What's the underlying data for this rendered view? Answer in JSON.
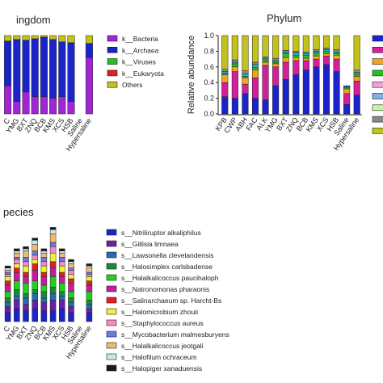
{
  "chart_data": [
    {
      "id": "kingdom",
      "type": "bar",
      "stacked": true,
      "title": "ingdom",
      "ylabel": "",
      "ylim": [
        0,
        1
      ],
      "categories": [
        "C",
        "YMG",
        "BXT",
        "ZNQ",
        "BCB",
        "KMS",
        "XCS",
        "HSB",
        "Saline",
        "Hypersaline"
      ],
      "series": [
        {
          "name": "k__Bacteria",
          "color": "#a125d4",
          "values": [
            0.36,
            0.16,
            0.28,
            0.22,
            0.22,
            0.2,
            0.22,
            0.16,
            0.0,
            0.72
          ]
        },
        {
          "name": "k__Archaea",
          "color": "#1a24c8",
          "values": [
            0.57,
            0.79,
            0.66,
            0.74,
            0.76,
            0.75,
            0.7,
            0.75,
            0.0,
            0.18
          ]
        },
        {
          "name": "k__Viruses",
          "color": "#22c022",
          "values": [
            0.0,
            0.0,
            0.0,
            0.0,
            0.0,
            0.0,
            0.0,
            0.0,
            0.0,
            0.0
          ]
        },
        {
          "name": "k__Eukaryota",
          "color": "#e02020",
          "values": [
            0.0,
            0.0,
            0.0,
            0.0,
            0.0,
            0.0,
            0.0,
            0.0,
            0.0,
            0.0
          ]
        },
        {
          "name": "Others",
          "color": "#c2c21a",
          "values": [
            0.07,
            0.05,
            0.06,
            0.04,
            0.02,
            0.05,
            0.08,
            0.09,
            0.0,
            0.1
          ]
        }
      ]
    },
    {
      "id": "phylum",
      "type": "bar",
      "stacked": true,
      "title": "Phylum",
      "ylabel": "Relative abundance",
      "ylim": [
        0,
        1
      ],
      "yticks": [
        "0.0",
        "0.2",
        "0.4",
        "0.6",
        "0.8",
        "1.0"
      ],
      "categories": [
        "KPB",
        "CWP",
        "ABH",
        "FAC",
        "ALK",
        "YMG",
        "BXT",
        "ZNQ",
        "BCB",
        "KMS",
        "XCS",
        "HSB",
        "Saline",
        "Hypersaline"
      ],
      "series": [
        {
          "name": "",
          "color": "#1a24c8",
          "values": [
            0.22,
            0.2,
            0.26,
            0.2,
            0.18,
            0.36,
            0.44,
            0.5,
            0.56,
            0.6,
            0.63,
            0.54,
            0.12,
            0.24
          ]
        },
        {
          "name": "",
          "color": "#d21f9a",
          "values": [
            0.18,
            0.34,
            0.12,
            0.26,
            0.44,
            0.24,
            0.22,
            0.18,
            0.12,
            0.1,
            0.11,
            0.16,
            0.14,
            0.18
          ]
        },
        {
          "name": "",
          "color": "#f5a01e",
          "values": [
            0.1,
            0.06,
            0.08,
            0.1,
            0.04,
            0.04,
            0.06,
            0.04,
            0.03,
            0.04,
            0.03,
            0.05,
            0.06,
            0.06
          ]
        },
        {
          "name": "",
          "color": "#22c022",
          "values": [
            0.02,
            0.04,
            0.02,
            0.03,
            0.03,
            0.02,
            0.05,
            0.03,
            0.04,
            0.04,
            0.03,
            0.02,
            0.02,
            0.03
          ]
        },
        {
          "name": "",
          "color": "#1fb3c9",
          "values": [
            0.02,
            0.02,
            0.03,
            0.04,
            0.02,
            0.02,
            0.02,
            0.03,
            0.02,
            0.02,
            0.02,
            0.02,
            0.01,
            0.02
          ]
        },
        {
          "name": "",
          "color": "#888888",
          "values": [
            0.03,
            0.03,
            0.04,
            0.03,
            0.02,
            0.03,
            0.02,
            0.02,
            0.02,
            0.02,
            0.02,
            0.03,
            0.01,
            0.03
          ]
        },
        {
          "name": "",
          "color": "#c2c21a",
          "values": [
            0.43,
            0.31,
            0.45,
            0.34,
            0.27,
            0.29,
            0.19,
            0.2,
            0.21,
            0.18,
            0.16,
            0.18,
            0.0,
            0.44
          ]
        }
      ],
      "legend_swatch_colors": [
        "#1a24c8",
        "#d21f9a",
        "#f5a01e",
        "#22c022",
        "#f2a0d4",
        "#7fb0e8",
        "#c8f5a0",
        "#888888",
        "#c2c21a"
      ]
    },
    {
      "id": "species",
      "type": "bar",
      "stacked": true,
      "title": "pecies",
      "ylabel": "",
      "categories": [
        "C",
        "YMG",
        "BXT",
        "ZNQ",
        "BCB",
        "KMS",
        "XCS",
        "HSB",
        "Saline",
        "Hypersaline"
      ],
      "series": [
        {
          "name": "s__Nitriliruptor alkaliphilus",
          "color": "#1a24c8",
          "values": [
            0.04,
            0.06,
            0.05,
            0.06,
            0.05,
            0.05,
            0.06,
            0.04,
            0.0,
            0.04
          ]
        },
        {
          "name": "s__Gillisia limnaea",
          "color": "#6a1fa8",
          "values": [
            0.03,
            0.04,
            0.03,
            0.04,
            0.04,
            0.05,
            0.04,
            0.03,
            0.0,
            0.02
          ]
        },
        {
          "name": "s__Lawsonella clevelandensis",
          "color": "#1e6fb0",
          "values": [
            0.02,
            0.02,
            0.03,
            0.03,
            0.02,
            0.03,
            0.02,
            0.02,
            0.0,
            0.02
          ]
        },
        {
          "name": "s__Halosimplex carlsbadense",
          "color": "#1a8a3a",
          "values": [
            0.02,
            0.03,
            0.02,
            0.02,
            0.03,
            0.03,
            0.02,
            0.02,
            0.0,
            0.02
          ]
        },
        {
          "name": "s__Halalkalicoccus paucihalophilus",
          "color": "#22d022",
          "values": [
            0.03,
            0.04,
            0.05,
            0.04,
            0.03,
            0.05,
            0.04,
            0.03,
            0.0,
            0.04
          ]
        },
        {
          "name": "s__Natronomonas pharaonis",
          "color": "#c21f9a",
          "values": [
            0.03,
            0.04,
            0.03,
            0.05,
            0.04,
            0.04,
            0.03,
            0.04,
            0.0,
            0.03
          ]
        },
        {
          "name": "s__Salinarchaeum sp. Harcht-Bs",
          "color": "#e02020",
          "values": [
            0.02,
            0.02,
            0.02,
            0.03,
            0.02,
            0.03,
            0.02,
            0.02,
            0.0,
            0.02
          ]
        },
        {
          "name": "s__Halomicrobium zhouii",
          "color": "#f0f03a",
          "values": [
            0.02,
            0.02,
            0.03,
            0.02,
            0.03,
            0.04,
            0.03,
            0.02,
            0.0,
            0.02
          ]
        },
        {
          "name": "s__Staphylococcus aureus",
          "color": "#f58ac8",
          "values": [
            0.01,
            0.02,
            0.02,
            0.02,
            0.02,
            0.03,
            0.02,
            0.02,
            0.0,
            0.01
          ]
        },
        {
          "name": "s__Mycobacterium malmesburyense",
          "color": "#6a7ae0",
          "values": [
            0.01,
            0.01,
            0.02,
            0.02,
            0.02,
            0.02,
            0.02,
            0.01,
            0.0,
            0.01
          ]
        },
        {
          "name": "s__Halalkalicoccus jeotgali",
          "color": "#f5b870",
          "values": [
            0.01,
            0.02,
            0.03,
            0.03,
            0.02,
            0.04,
            0.02,
            0.02,
            0.0,
            0.02
          ]
        },
        {
          "name": "s__Halofilum ochraceum",
          "color": "#c8e8f0",
          "values": [
            0.01,
            0.01,
            0.01,
            0.02,
            0.01,
            0.02,
            0.01,
            0.01,
            0.0,
            0.01
          ]
        },
        {
          "name": "s__Halopiger xanaduensis",
          "color": "#1a1a1a",
          "values": [
            0.01,
            0.01,
            0.01,
            0.01,
            0.01,
            0.01,
            0.01,
            0.01,
            0.0,
            0.01
          ]
        }
      ],
      "legend_labels": [
        "s__Nitriliruptor alkaliphilus",
        "s__Gillisia limnaea",
        "s__Lawsonella clevelandensis",
        "s__Halosimplex carlsbadense",
        "s__Halalkalicoccus paucihaloph",
        "s__Natronomonas pharaonis",
        "s__Salinarchaeum sp. Harcht-Bs",
        "s__Halomicrobium zhouii",
        "s__Staphylococcus aureus",
        "s__Mycobacterium malmesburyens",
        "s__Halalkalicoccus jeotgali",
        "s__Halofilum ochraceum",
        "s__Halopiger xanaduensis"
      ]
    }
  ]
}
